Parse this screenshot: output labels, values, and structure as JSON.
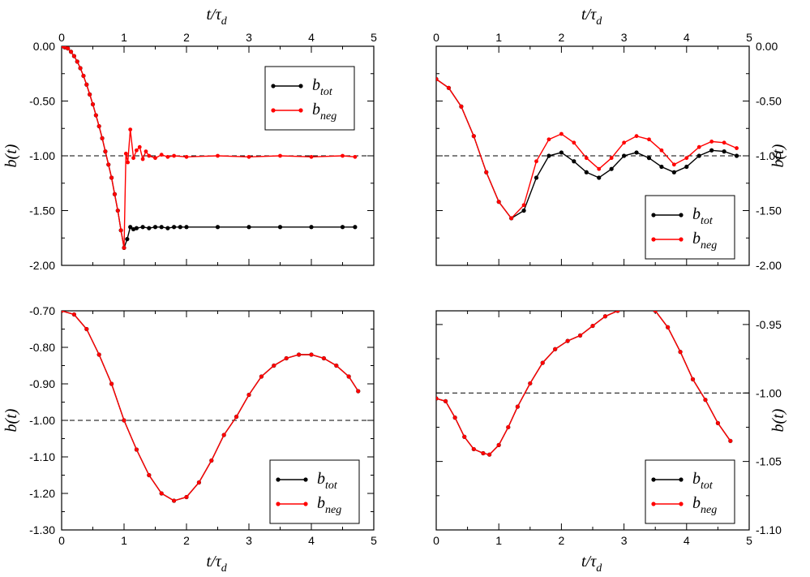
{
  "chart_data": [
    {
      "type": "line",
      "xlabel": "t/τ_d",
      "ylabel": "b(t)",
      "xlim": [
        0,
        5
      ],
      "ylim": [
        -2.0,
        0.0
      ],
      "xticks": [
        "0",
        "1",
        "2",
        "3",
        "4",
        "5"
      ],
      "yticks": [
        "0.00",
        "-0.50",
        "-1.00",
        "-1.50",
        "-2.00"
      ],
      "reference_line": -1.0,
      "legend": "top-right",
      "series": [
        {
          "name": "b_tot",
          "color": "#000000",
          "x": [
            0,
            0.05,
            0.1,
            0.15,
            0.2,
            0.25,
            0.3,
            0.35,
            0.4,
            0.45,
            0.5,
            0.55,
            0.6,
            0.65,
            0.7,
            0.75,
            0.8,
            0.85,
            0.9,
            0.95,
            1.0,
            1.05,
            1.1,
            1.15,
            1.2,
            1.3,
            1.4,
            1.5,
            1.6,
            1.7,
            1.8,
            1.9,
            2.0,
            2.5,
            3.0,
            3.5,
            4.0,
            4.5,
            4.7
          ],
          "y": [
            0,
            -0.01,
            -0.02,
            -0.05,
            -0.09,
            -0.14,
            -0.2,
            -0.27,
            -0.35,
            -0.44,
            -0.53,
            -0.63,
            -0.73,
            -0.84,
            -0.96,
            -1.08,
            -1.2,
            -1.35,
            -1.5,
            -1.68,
            -1.84,
            -1.76,
            -1.65,
            -1.67,
            -1.66,
            -1.65,
            -1.66,
            -1.65,
            -1.65,
            -1.66,
            -1.65,
            -1.65,
            -1.65,
            -1.65,
            -1.65,
            -1.65,
            -1.65,
            -1.65,
            -1.65
          ]
        },
        {
          "name": "b_neg",
          "color": "#ff0000",
          "x": [
            0,
            0.05,
            0.1,
            0.15,
            0.2,
            0.25,
            0.3,
            0.35,
            0.4,
            0.45,
            0.5,
            0.55,
            0.6,
            0.65,
            0.7,
            0.75,
            0.8,
            0.85,
            0.9,
            0.95,
            1.0,
            1.03,
            1.06,
            1.1,
            1.15,
            1.2,
            1.25,
            1.3,
            1.35,
            1.4,
            1.5,
            1.6,
            1.7,
            1.8,
            2.0,
            2.5,
            3.0,
            3.5,
            4.0,
            4.5,
            4.7
          ],
          "y": [
            0,
            -0.01,
            -0.02,
            -0.05,
            -0.09,
            -0.14,
            -0.2,
            -0.27,
            -0.35,
            -0.44,
            -0.53,
            -0.63,
            -0.73,
            -0.84,
            -0.96,
            -1.08,
            -1.2,
            -1.35,
            -1.5,
            -1.68,
            -1.84,
            -0.98,
            -1.06,
            -0.76,
            -1.02,
            -0.95,
            -0.92,
            -1.03,
            -0.96,
            -1.0,
            -1.02,
            -0.99,
            -1.01,
            -1.0,
            -1.01,
            -1.0,
            -1.01,
            -1.0,
            -1.01,
            -1.0,
            -1.01
          ]
        }
      ]
    },
    {
      "type": "line",
      "xlabel": "t/τ_d",
      "ylabel": "b(t)",
      "xlim": [
        0,
        5
      ],
      "ylim": [
        -2.0,
        0.0
      ],
      "xticks": [
        "0",
        "1",
        "2",
        "3",
        "4",
        "5"
      ],
      "yticks": [
        "0.00",
        "-0.50",
        "-1.00",
        "-1.50",
        "-2.00"
      ],
      "reference_line": -1.0,
      "legend": "bottom-right",
      "series": [
        {
          "name": "b_tot",
          "color": "#000000",
          "x": [
            0,
            0.2,
            0.4,
            0.6,
            0.8,
            1.0,
            1.2,
            1.4,
            1.6,
            1.8,
            2.0,
            2.2,
            2.4,
            2.6,
            2.8,
            3.0,
            3.2,
            3.4,
            3.6,
            3.8,
            4.0,
            4.2,
            4.4,
            4.6,
            4.8
          ],
          "y": [
            -0.3,
            -0.38,
            -0.55,
            -0.82,
            -1.15,
            -1.42,
            -1.57,
            -1.5,
            -1.2,
            -1.0,
            -0.97,
            -1.05,
            -1.15,
            -1.2,
            -1.12,
            -1.0,
            -0.97,
            -1.02,
            -1.1,
            -1.15,
            -1.1,
            -1.0,
            -0.95,
            -0.96,
            -1.0
          ]
        },
        {
          "name": "b_neg",
          "color": "#ff0000",
          "x": [
            0,
            0.2,
            0.4,
            0.6,
            0.8,
            1.0,
            1.2,
            1.4,
            1.6,
            1.8,
            2.0,
            2.2,
            2.4,
            2.6,
            2.8,
            3.0,
            3.2,
            3.4,
            3.6,
            3.8,
            4.0,
            4.2,
            4.4,
            4.6,
            4.8
          ],
          "y": [
            -0.3,
            -0.38,
            -0.55,
            -0.82,
            -1.15,
            -1.42,
            -1.57,
            -1.45,
            -1.05,
            -0.85,
            -0.8,
            -0.88,
            -1.02,
            -1.12,
            -1.02,
            -0.88,
            -0.82,
            -0.85,
            -0.95,
            -1.08,
            -1.02,
            -0.92,
            -0.87,
            -0.88,
            -0.93
          ]
        }
      ]
    },
    {
      "type": "line",
      "xlabel": "t/τ_d",
      "ylabel": "b(t)",
      "xlim": [
        0,
        5
      ],
      "ylim": [
        -1.3,
        -0.7
      ],
      "xticks": [
        "0",
        "1",
        "2",
        "3",
        "4",
        "5"
      ],
      "yticks": [
        "-0.70",
        "-0.80",
        "-0.90",
        "-1.00",
        "-1.10",
        "-1.20",
        "-1.30"
      ],
      "reference_line": -1.0,
      "legend": "bottom-right",
      "series": [
        {
          "name": "b_tot",
          "color": "#000000",
          "x": [
            0,
            0.2,
            0.4,
            0.6,
            0.8,
            1.0,
            1.2,
            1.4,
            1.6,
            1.8,
            2.0,
            2.2,
            2.4,
            2.6,
            2.8,
            3.0,
            3.2,
            3.4,
            3.6,
            3.8,
            4.0,
            4.2,
            4.4,
            4.6,
            4.75
          ],
          "y": [
            -0.7,
            -0.71,
            -0.75,
            -0.82,
            -0.9,
            -1.0,
            -1.08,
            -1.15,
            -1.2,
            -1.22,
            -1.21,
            -1.17,
            -1.11,
            -1.04,
            -0.99,
            -0.93,
            -0.88,
            -0.85,
            -0.83,
            -0.82,
            -0.82,
            -0.83,
            -0.85,
            -0.88,
            -0.92
          ]
        },
        {
          "name": "b_neg",
          "color": "#ff0000",
          "x": [
            0,
            0.2,
            0.4,
            0.6,
            0.8,
            1.0,
            1.2,
            1.4,
            1.6,
            1.8,
            2.0,
            2.2,
            2.4,
            2.6,
            2.8,
            3.0,
            3.2,
            3.4,
            3.6,
            3.8,
            4.0,
            4.2,
            4.4,
            4.6,
            4.75
          ],
          "y": [
            -0.7,
            -0.71,
            -0.75,
            -0.82,
            -0.9,
            -1.0,
            -1.08,
            -1.15,
            -1.2,
            -1.22,
            -1.21,
            -1.17,
            -1.11,
            -1.04,
            -0.99,
            -0.93,
            -0.88,
            -0.85,
            -0.83,
            -0.82,
            -0.82,
            -0.83,
            -0.85,
            -0.88,
            -0.92
          ]
        }
      ]
    },
    {
      "type": "line",
      "xlabel": "t/τ_d",
      "ylabel": "b(t)",
      "xlim": [
        0,
        5
      ],
      "ylim": [
        -1.1,
        -0.94
      ],
      "xticks": [
        "0",
        "1",
        "2",
        "3",
        "4",
        "5"
      ],
      "yticks": [
        "-0.95",
        "-1.00",
        "-1.05",
        "-1.10"
      ],
      "reference_line": -1.0,
      "legend": "bottom-right",
      "series": [
        {
          "name": "b_tot",
          "color": "#000000",
          "x": [
            0,
            0.15,
            0.3,
            0.45,
            0.6,
            0.75,
            0.85,
            1.0,
            1.15,
            1.3,
            1.5,
            1.7,
            1.9,
            2.1,
            2.3,
            2.5,
            2.7,
            2.9,
            3.1,
            3.3,
            3.5,
            3.7,
            3.9,
            4.1,
            4.3,
            4.5,
            4.7
          ],
          "y": [
            -1.004,
            -1.006,
            -1.018,
            -1.032,
            -1.041,
            -1.044,
            -1.045,
            -1.038,
            -1.025,
            -1.01,
            -0.993,
            -0.978,
            -0.968,
            -0.962,
            -0.958,
            -0.951,
            -0.944,
            -0.94,
            -0.938,
            -0.937,
            -0.94,
            -0.952,
            -0.97,
            -0.99,
            -1.005,
            -1.022,
            -1.035
          ]
        },
        {
          "name": "b_neg",
          "color": "#ff0000",
          "x": [
            0,
            0.15,
            0.3,
            0.45,
            0.6,
            0.75,
            0.85,
            1.0,
            1.15,
            1.3,
            1.5,
            1.7,
            1.9,
            2.1,
            2.3,
            2.5,
            2.7,
            2.9,
            3.1,
            3.3,
            3.5,
            3.7,
            3.9,
            4.1,
            4.3,
            4.5,
            4.7
          ],
          "y": [
            -1.004,
            -1.006,
            -1.018,
            -1.032,
            -1.041,
            -1.044,
            -1.045,
            -1.038,
            -1.025,
            -1.01,
            -0.993,
            -0.978,
            -0.968,
            -0.962,
            -0.958,
            -0.951,
            -0.944,
            -0.94,
            -0.938,
            -0.937,
            -0.94,
            -0.952,
            -0.97,
            -0.99,
            -1.005,
            -1.022,
            -1.035
          ]
        }
      ]
    }
  ],
  "legend_labels": {
    "tot_base": "b",
    "tot_sub": "tot",
    "neg_base": "b",
    "neg_sub": "neg"
  },
  "axis_text": {
    "x_base": "t/τ",
    "x_sub": "d",
    "y": "b(t)"
  }
}
